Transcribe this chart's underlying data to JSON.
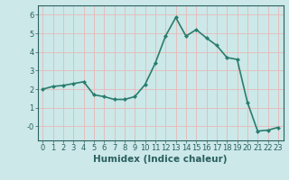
{
  "x": [
    0,
    1,
    2,
    3,
    4,
    5,
    6,
    7,
    8,
    9,
    10,
    11,
    12,
    13,
    14,
    15,
    16,
    17,
    18,
    19,
    20,
    21,
    22,
    23
  ],
  "y": [
    2.0,
    2.15,
    2.2,
    2.3,
    2.4,
    1.7,
    1.6,
    1.45,
    1.45,
    1.6,
    2.25,
    3.4,
    4.85,
    5.85,
    4.85,
    5.2,
    4.75,
    4.35,
    3.7,
    3.6,
    1.3,
    -0.25,
    -0.2,
    -0.05
  ],
  "line_color": "#2a7d6e",
  "marker": "D",
  "marker_size": 2.0,
  "bg_color": "#cce8e8",
  "grid_color": "#e8b8b8",
  "xlabel": "Humidex (Indice chaleur)",
  "xlim": [
    -0.5,
    23.5
  ],
  "ylim": [
    -0.75,
    6.5
  ],
  "yticks": [
    0,
    1,
    2,
    3,
    4,
    5,
    6
  ],
  "ytick_labels": [
    "-0",
    "1",
    "2",
    "3",
    "4",
    "5",
    "6"
  ],
  "xticks": [
    0,
    1,
    2,
    3,
    4,
    5,
    6,
    7,
    8,
    9,
    10,
    11,
    12,
    13,
    14,
    15,
    16,
    17,
    18,
    19,
    20,
    21,
    22,
    23
  ],
  "tick_color": "#2a6060",
  "label_color": "#2a6060",
  "font_size": 6.0,
  "xlabel_fontsize": 7.5,
  "linewidth": 1.2
}
